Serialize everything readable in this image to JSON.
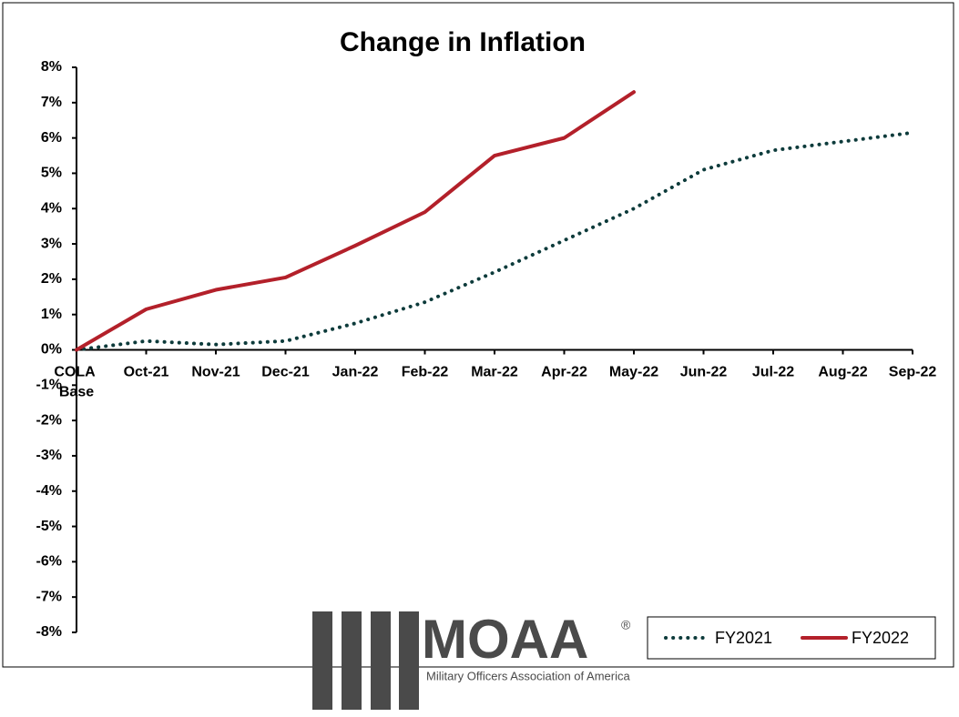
{
  "chart_data": {
    "type": "line",
    "title": "Change in Inflation",
    "categories": [
      "COLA Base",
      "Oct-21",
      "Nov-21",
      "Dec-21",
      "Jan-22",
      "Feb-22",
      "Mar-22",
      "Apr-22",
      "May-22",
      "Jun-22",
      "Jul-22",
      "Aug-22",
      "Sep-22"
    ],
    "series": [
      {
        "name": "FY2021",
        "color": "#0d3b3b",
        "dash": "dotted",
        "values": [
          0,
          0.25,
          0.15,
          0.25,
          0.75,
          1.35,
          2.2,
          3.1,
          4.0,
          5.1,
          5.65,
          5.9,
          6.15
        ]
      },
      {
        "name": "FY2022",
        "color": "#b3202a",
        "dash": "solid",
        "values": [
          0,
          1.15,
          1.7,
          2.05,
          2.95,
          3.9,
          5.5,
          6.0,
          7.3,
          null,
          null,
          null,
          null
        ]
      }
    ],
    "ylim": [
      -8,
      8
    ],
    "yticks": [
      {
        "value": -8,
        "label": "-8%"
      },
      {
        "value": -7,
        "label": "-7%"
      },
      {
        "value": -6,
        "label": "-6%"
      },
      {
        "value": -5,
        "label": "-5%"
      },
      {
        "value": -4,
        "label": "-4%"
      },
      {
        "value": -3,
        "label": "-3%"
      },
      {
        "value": -2,
        "label": "-2%"
      },
      {
        "value": -1,
        "label": "-1%"
      },
      {
        "value": 0,
        "label": "0%"
      },
      {
        "value": 1,
        "label": "1%"
      },
      {
        "value": 2,
        "label": "2%"
      },
      {
        "value": 3,
        "label": "3%"
      },
      {
        "value": 4,
        "label": "4%"
      },
      {
        "value": 5,
        "label": "5%"
      },
      {
        "value": 6,
        "label": "6%"
      },
      {
        "value": 7,
        "label": "7%"
      },
      {
        "value": 8,
        "label": "8%"
      }
    ],
    "grid": false,
    "legend": "bottom-right"
  },
  "logo": {
    "name": "MOAA",
    "mark": "®",
    "tagline": "Military Officers Association of America"
  }
}
